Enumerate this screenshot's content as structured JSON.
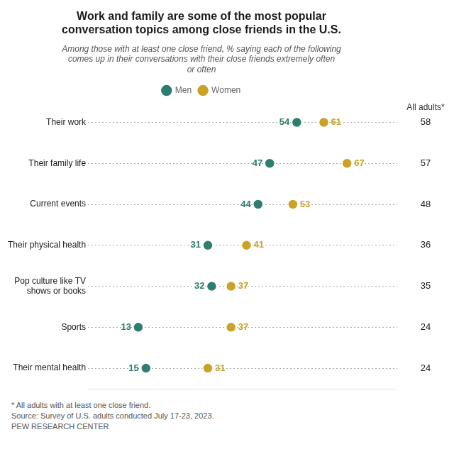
{
  "chart_data": {
    "type": "scatter",
    "orientation": "horizontal",
    "title": "Work and family are some of the most popular\nconversation topics among close friends in the U.S.",
    "subtitle": "Among those with at least one close friend, % saying each of the following\ncomes up in their conversations with their close friends extremely often\nor often",
    "categories": [
      "Their work",
      "Their family life",
      "Current events",
      "Their physical health",
      "Pop culture like TV\nshows or books",
      "Sports",
      "Their mental health"
    ],
    "series": [
      {
        "name": "Men",
        "color": "#2E7D6E",
        "values": [
          54,
          47,
          44,
          31,
          32,
          13,
          15
        ]
      },
      {
        "name": "Women",
        "color": "#C9A227",
        "values": [
          61,
          67,
          53,
          41,
          37,
          37,
          31
        ]
      }
    ],
    "all_adults": {
      "name": "All adults*",
      "values": [
        58,
        57,
        48,
        36,
        35,
        24,
        24
      ]
    },
    "xlim": [
      0,
      80
    ],
    "tick_labels": "y",
    "grid": true,
    "legend": "top",
    "data_labels": true,
    "annotations": [
      "* All adults with at least one close friend.",
      "Source: Survey of U.S. adults conducted July 17-23, 2023.",
      "PEW RESEARCH CENTER"
    ]
  }
}
